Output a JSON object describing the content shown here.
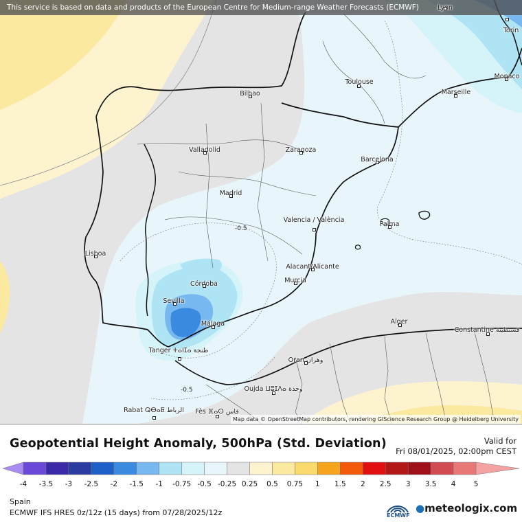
{
  "banner": "This service is based on data and products of the European Centre for Medium-range Weather Forecasts (ECMWF)",
  "attribution": "Map data © OpenStreetMap contributors, rendering GIScience Research Group @ Heidelberg University",
  "title": "Geopotential Height Anomaly, 500hPa (Std. Deviation)",
  "valid_label": "Valid for",
  "valid_time": "Fri 08/01/2025, 02:00pm CEST",
  "region": "Spain",
  "model": "ECMWF IFS HRES 0z/12z (15 days) from 07/28/2025/12z",
  "ecmwf_logo_text": "ECMWF",
  "brand": "meteologix.com",
  "contour_labels": [
    "-0.5",
    "-0.5"
  ],
  "cities": [
    {
      "name": "Lyon"
    },
    {
      "name": "Torin"
    },
    {
      "name": "Monaco"
    },
    {
      "name": "Toulouse"
    },
    {
      "name": "Marseille"
    },
    {
      "name": "Bilbao"
    },
    {
      "name": "Valladolid"
    },
    {
      "name": "Zaragoza"
    },
    {
      "name": "Barcelona"
    },
    {
      "name": "Madrid"
    },
    {
      "name": "Valencia / València"
    },
    {
      "name": "Palma"
    },
    {
      "name": "Lisboa"
    },
    {
      "name": "Alacant/Alicante"
    },
    {
      "name": "Murcia"
    },
    {
      "name": "Córdoba"
    },
    {
      "name": "Sevilla"
    },
    {
      "name": "Málaga"
    },
    {
      "name": "Tanger ⵜⴰⵏⵊⴰ طنجة"
    },
    {
      "name": "Alger"
    },
    {
      "name": "Constantine قسنطينة"
    },
    {
      "name": "Oran وهران"
    },
    {
      "name": "Oujda ⵡⵓⵊⴷⴰ وجدة"
    },
    {
      "name": "Rabat ⵕⴱⴰⵟ الرباط"
    },
    {
      "name": "Fès ⴼⴰⵙ فاس"
    }
  ],
  "legend": {
    "ticks": [
      "-4",
      "-3.5",
      "-3",
      "-2.5",
      "-2",
      "-1.5",
      "-1",
      "-0.75",
      "-0.5",
      "-0.25",
      "0.25",
      "0.5",
      "0.75",
      "1",
      "1.5",
      "2",
      "2.5",
      "3",
      "3.5",
      "4",
      "5"
    ],
    "colors": [
      "#a88cf2",
      "#6a48d8",
      "#3a2aa8",
      "#2a3ca0",
      "#1f5fc8",
      "#3a8ae0",
      "#78b8f0",
      "#aee4f4",
      "#d4f4fa",
      "#e8f6fc",
      "#e4e4e4",
      "#fdf3cf",
      "#fbe9a0",
      "#f9da6a",
      "#f7a41e",
      "#f25a0a",
      "#e01010",
      "#b21818",
      "#a0101a",
      "#d24a52",
      "#e87878",
      "#f4a2a2"
    ]
  },
  "colors": {
    "neutral": "#e4e4e4",
    "pale_blue": "#e8f6fc",
    "light_blue": "#d4f4fa",
    "cyan": "#aee4f4",
    "mid_blue": "#78b8f0",
    "blue": "#3a8ae0",
    "pale_yellow": "#fdf3cf",
    "yellow": "#fbe9a0"
  }
}
